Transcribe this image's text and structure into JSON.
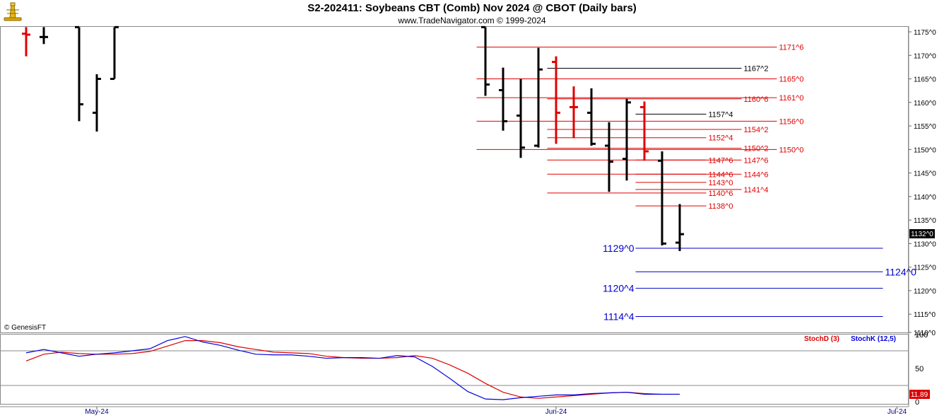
{
  "header": {
    "title": "S2-202411:  Soybeans CBT (Comb) Nov 2024 @ CBOT  (Daily bars)",
    "subtitle": "www.TradeNavigator.com © 1999-2024",
    "logo_icon": "trade-navigator-lighthouse-icon"
  },
  "footer": {
    "copyright": "© GenesisFT"
  },
  "price_axis": {
    "ticks": [
      "1175^0",
      "1170^0",
      "1165^0",
      "1160^0",
      "1155^0",
      "1150^0",
      "1145^0",
      "1140^0",
      "1135^0",
      "1130^0",
      "1125^0",
      "1120^0",
      "1115^0",
      "1110^0"
    ],
    "last_price": "1132^0"
  },
  "indicator": {
    "stochd_label": "StochD (3)",
    "stochk_label": "StochK (12,5)",
    "ticks": [
      "100",
      "50",
      "0"
    ],
    "last_value": "11.89"
  },
  "time_axis": {
    "labels": [
      "May-24",
      "Jun-24",
      "Jul-24"
    ]
  },
  "colors": {
    "up_bar": "#000000",
    "down_bar": "#e00000",
    "red_level": "#e00000",
    "black_level": "#000000",
    "blue_level": "#0000cc",
    "stochd": "#dd0000",
    "stochk": "#0000dd"
  },
  "chart_data": {
    "type": "ohlc",
    "title": "S2-202411:  Soybeans CBT (Comb) Nov 2024 @ CBOT  (Daily bars)",
    "ylim": [
      1110,
      1176
    ],
    "bars": [
      {
        "i": 0,
        "o": 1174.6,
        "h": 1176,
        "l": 1169.8,
        "c": 1174.4,
        "color": "red"
      },
      {
        "i": 1,
        "o": 1173.9,
        "h": 1176,
        "l": 1172.4,
        "c": 1173.9,
        "color": "black"
      },
      {
        "i": 3,
        "o": 1176,
        "h": 1176,
        "l": 1156.0,
        "c": 1159.6,
        "color": "black"
      },
      {
        "i": 4,
        "o": 1157.8,
        "h": 1166.0,
        "l": 1153.8,
        "c": 1165.0,
        "color": "black"
      },
      {
        "i": 5,
        "o": 1165.0,
        "h": 1176,
        "l": 1165.0,
        "c": 1176,
        "color": "black"
      },
      {
        "i": 26,
        "o": 1176,
        "h": 1176,
        "l": 1161.4,
        "c": 1163.8,
        "color": "black"
      },
      {
        "i": 27,
        "o": 1162.6,
        "h": 1167.4,
        "l": 1154.0,
        "c": 1156.0,
        "color": "black"
      },
      {
        "i": 28,
        "o": 1157.2,
        "h": 1165.0,
        "l": 1148.2,
        "c": 1150.4,
        "color": "black"
      },
      {
        "i": 29,
        "o": 1150.8,
        "h": 1171.6,
        "l": 1150.4,
        "c": 1167.0,
        "color": "black"
      },
      {
        "i": 30,
        "o": 1168.6,
        "h": 1169.8,
        "l": 1151.2,
        "c": 1157.8,
        "color": "red"
      },
      {
        "i": 31,
        "o": 1159.0,
        "h": 1163.4,
        "l": 1152.4,
        "c": 1159.0,
        "color": "red"
      },
      {
        "i": 32,
        "o": 1157.8,
        "h": 1163.0,
        "l": 1150.8,
        "c": 1151.2,
        "color": "black"
      },
      {
        "i": 33,
        "o": 1150.8,
        "h": 1155.8,
        "l": 1141.0,
        "c": 1147.4,
        "color": "black"
      },
      {
        "i": 34,
        "o": 1148.0,
        "h": 1160.8,
        "l": 1143.4,
        "c": 1160.0,
        "color": "black"
      },
      {
        "i": 35,
        "o": 1159.0,
        "h": 1160.2,
        "l": 1147.6,
        "c": 1149.6,
        "color": "red"
      },
      {
        "i": 36,
        "o": 1147.6,
        "h": 1149.6,
        "l": 1129.6,
        "c": 1130.0,
        "color": "black"
      },
      {
        "i": 37,
        "o": 1130.2,
        "h": 1138.4,
        "l": 1128.4,
        "c": 1132.0,
        "color": "black"
      }
    ],
    "levels": [
      {
        "label": "1171^6",
        "value": 1171.75,
        "color": "red",
        "from": 25.5,
        "to": 42.5
      },
      {
        "label": "1167^2",
        "value": 1167.25,
        "color": "black",
        "from": 29.5,
        "to": 40.5
      },
      {
        "label": "1165^0",
        "value": 1165.0,
        "color": "red",
        "from": 25.5,
        "to": 42.5
      },
      {
        "label": "1160^6",
        "value": 1160.75,
        "color": "red",
        "from": 29.5,
        "to": 40.5
      },
      {
        "label": "1161^0",
        "value": 1161.0,
        "color": "red",
        "from": 25.5,
        "to": 42.5
      },
      {
        "label": "1157^4",
        "value": 1157.5,
        "color": "black",
        "from": 34.5,
        "to": 38.5
      },
      {
        "label": "1156^0",
        "value": 1156.0,
        "color": "red",
        "from": 25.5,
        "to": 42.5
      },
      {
        "label": "1154^2",
        "value": 1154.25,
        "color": "red",
        "from": 29.5,
        "to": 40.5
      },
      {
        "label": "1152^4",
        "value": 1152.5,
        "color": "red",
        "from": 29.5,
        "to": 38.5
      },
      {
        "label": "1150^2",
        "value": 1150.25,
        "color": "red",
        "from": 29.5,
        "to": 40.5
      },
      {
        "label": "1150^0",
        "value": 1150.0,
        "color": "red",
        "from": 25.5,
        "to": 42.5
      },
      {
        "label": "1147^6",
        "value": 1147.75,
        "color": "red",
        "from": 29.5,
        "to": 38.5
      },
      {
        "label": "1147^6",
        "value": 1147.75,
        "color": "red",
        "from": 34.5,
        "to": 40.5
      },
      {
        "label": "1144^6",
        "value": 1144.75,
        "color": "red",
        "from": 29.5,
        "to": 38.5
      },
      {
        "label": "1144^6",
        "value": 1144.75,
        "color": "red",
        "from": 34.5,
        "to": 40.5
      },
      {
        "label": "1143^0",
        "value": 1143.0,
        "color": "red",
        "from": 34.5,
        "to": 38.5
      },
      {
        "label": "1140^6",
        "value": 1140.75,
        "color": "red",
        "from": 29.5,
        "to": 38.5
      },
      {
        "label": "1141^4",
        "value": 1141.5,
        "color": "red",
        "from": 34.5,
        "to": 40.5
      },
      {
        "label": "1138^0",
        "value": 1138.0,
        "color": "red",
        "from": 34.5,
        "to": 38.5
      },
      {
        "label": "1129^0",
        "value": 1129.0,
        "color": "blue",
        "from": 34.5,
        "to": 48.5,
        "label_left": true
      },
      {
        "label": "1124^0",
        "value": 1124.0,
        "color": "blue",
        "from": 34.5,
        "to": 48.5
      },
      {
        "label": "1120^4",
        "value": 1120.5,
        "color": "blue",
        "from": 34.5,
        "to": 48.5,
        "label_left": true
      },
      {
        "label": "1114^4",
        "value": 1114.5,
        "color": "blue",
        "from": 34.5,
        "to": 48.5,
        "label_left": true
      }
    ],
    "stochastic": {
      "ylim": [
        0,
        100
      ],
      "reference_lines": [
        80,
        20
      ],
      "series": [
        {
          "name": "StochD (3)",
          "color": "#dd0000",
          "values": [
            [
              0,
              60
            ],
            [
              1,
              70
            ],
            [
              2,
              73
            ],
            [
              3,
              71
            ],
            [
              4,
              70
            ],
            [
              5,
              70
            ],
            [
              6,
              71
            ],
            [
              7,
              74
            ],
            [
              8,
              82
            ],
            [
              9,
              90
            ],
            [
              10,
              90
            ],
            [
              11,
              87
            ],
            [
              12,
              81
            ],
            [
              13,
              77
            ],
            [
              14,
              73
            ],
            [
              15,
              72
            ],
            [
              16,
              71
            ],
            [
              17,
              67
            ],
            [
              18,
              65
            ],
            [
              19,
              64
            ],
            [
              20,
              64
            ],
            [
              21,
              65
            ],
            [
              22,
              68
            ],
            [
              23,
              64
            ],
            [
              24,
              54
            ],
            [
              25,
              42
            ],
            [
              26,
              27
            ],
            [
              27,
              14
            ],
            [
              28,
              7
            ],
            [
              29,
              5
            ],
            [
              30,
              7
            ],
            [
              31,
              9
            ],
            [
              32,
              11
            ],
            [
              33,
              13
            ],
            [
              34,
              14
            ],
            [
              35,
              12
            ],
            [
              36,
              11
            ],
            [
              37,
              11
            ]
          ]
        },
        {
          "name": "StochK (12,5)",
          "color": "#0000dd",
          "values": [
            [
              0,
              72
            ],
            [
              1,
              77
            ],
            [
              2,
              72
            ],
            [
              3,
              67
            ],
            [
              4,
              70
            ],
            [
              5,
              72
            ],
            [
              6,
              75
            ],
            [
              7,
              78
            ],
            [
              8,
              90
            ],
            [
              9,
              96
            ],
            [
              10,
              88
            ],
            [
              11,
              83
            ],
            [
              12,
              76
            ],
            [
              13,
              70
            ],
            [
              14,
              69
            ],
            [
              15,
              69
            ],
            [
              16,
              67
            ],
            [
              17,
              64
            ],
            [
              18,
              65
            ],
            [
              19,
              65
            ],
            [
              20,
              64
            ],
            [
              21,
              68
            ],
            [
              22,
              66
            ],
            [
              23,
              52
            ],
            [
              24,
              34
            ],
            [
              25,
              15
            ],
            [
              26,
              4
            ],
            [
              27,
              3
            ],
            [
              28,
              6
            ],
            [
              29,
              8
            ],
            [
              30,
              10
            ],
            [
              31,
              10
            ],
            [
              32,
              12
            ],
            [
              33,
              13
            ],
            [
              34,
              14
            ],
            [
              35,
              11
            ],
            [
              36,
              11
            ],
            [
              37,
              11
            ]
          ]
        }
      ]
    }
  }
}
